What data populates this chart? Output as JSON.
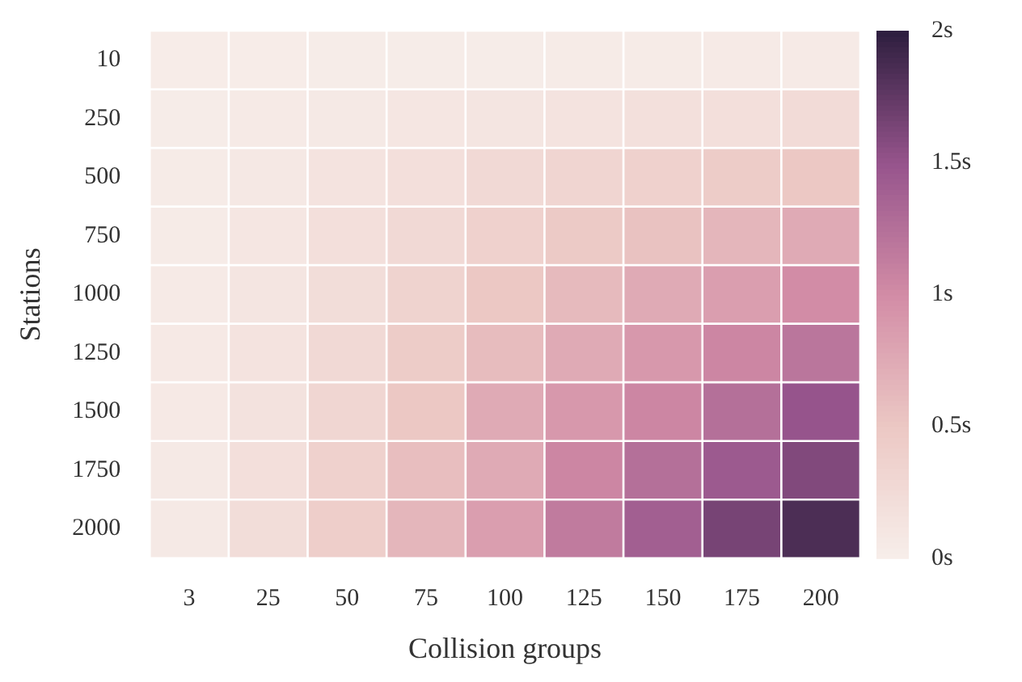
{
  "chart_data": {
    "type": "heatmap",
    "xlabel": "Collision groups",
    "ylabel": "Stations",
    "categories": [
      "3",
      "25",
      "50",
      "75",
      "100",
      "125",
      "150",
      "175",
      "200"
    ],
    "y_categories": [
      "10",
      "250",
      "500",
      "750",
      "1000",
      "1250",
      "1500",
      "1750",
      "2000"
    ],
    "cells": [
      [
        0.02,
        0.02,
        0.03,
        0.03,
        0.03,
        0.04,
        0.04,
        0.05,
        0.05
      ],
      [
        0.03,
        0.05,
        0.07,
        0.1,
        0.12,
        0.15,
        0.18,
        0.2,
        0.25
      ],
      [
        0.04,
        0.08,
        0.15,
        0.2,
        0.27,
        0.33,
        0.38,
        0.45,
        0.5
      ],
      [
        0.04,
        0.1,
        0.2,
        0.28,
        0.38,
        0.48,
        0.55,
        0.65,
        0.75
      ],
      [
        0.05,
        0.12,
        0.22,
        0.35,
        0.5,
        0.62,
        0.75,
        0.85,
        1.0
      ],
      [
        0.06,
        0.14,
        0.28,
        0.45,
        0.6,
        0.75,
        0.9,
        1.05,
        1.2
      ],
      [
        0.06,
        0.16,
        0.32,
        0.5,
        0.75,
        0.9,
        1.05,
        1.25,
        1.5
      ],
      [
        0.07,
        0.2,
        0.38,
        0.58,
        0.75,
        1.05,
        1.25,
        1.45,
        1.6
      ],
      [
        0.07,
        0.22,
        0.42,
        0.65,
        0.85,
        1.15,
        1.4,
        1.65,
        1.85
      ]
    ],
    "clim": [
      0,
      2
    ],
    "cticks": [
      {
        "value": 0,
        "label": "0s"
      },
      {
        "value": 0.5,
        "label": "0.5s"
      },
      {
        "value": 1,
        "label": "1s"
      },
      {
        "value": 1.5,
        "label": "1.5s"
      },
      {
        "value": 2,
        "label": "2s"
      }
    ]
  }
}
